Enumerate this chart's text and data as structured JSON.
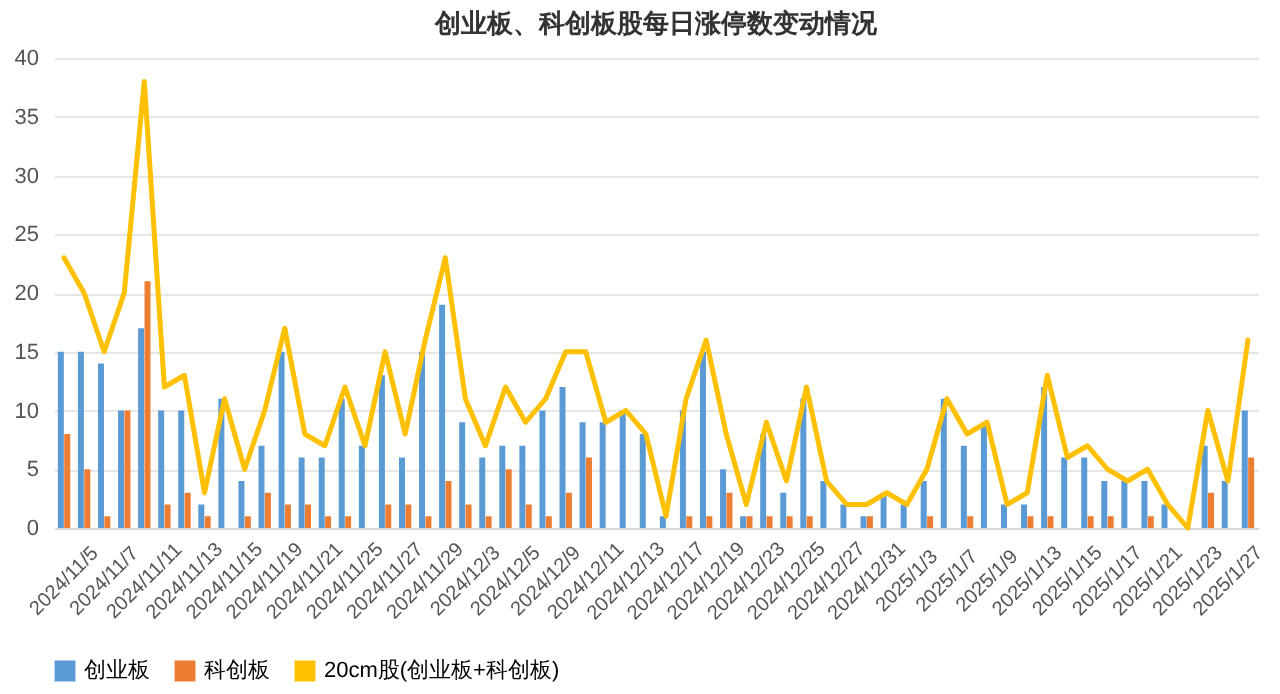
{
  "chart_data": {
    "type": "bar",
    "title": "创业板、科创板股每日涨停数变动情况",
    "categories": [
      "2024/11/5",
      null,
      "2024/11/7",
      null,
      "2024/11/11",
      null,
      "2024/11/13",
      null,
      "2024/11/15",
      null,
      "2024/11/19",
      null,
      "2024/11/21",
      null,
      "2024/11/25",
      null,
      "2024/11/27",
      null,
      "2024/11/29",
      null,
      "2024/12/3",
      null,
      "2024/12/5",
      null,
      "2024/12/9",
      null,
      "2024/12/11",
      null,
      "2024/12/13",
      null,
      "2024/12/17",
      null,
      "2024/12/19",
      null,
      "2024/12/23",
      null,
      "2024/12/25",
      null,
      "2024/12/27",
      null,
      "2024/12/31",
      null,
      "2025/1/3",
      null,
      "2025/1/7",
      null,
      "2025/1/9",
      null,
      "2025/1/13",
      null,
      "2025/1/15",
      null,
      "2025/1/17",
      null,
      "2025/1/21",
      null,
      "2025/1/23",
      null,
      "2025/1/27",
      null
    ],
    "series": [
      {
        "name": "创业板",
        "color": "#5b9bd5",
        "values": [
          15,
          15,
          14,
          10,
          17,
          10,
          10,
          2,
          11,
          4,
          7,
          15,
          6,
          6,
          11,
          7,
          13,
          6,
          15,
          19,
          9,
          6,
          7,
          7,
          10,
          12,
          9,
          9,
          10,
          8,
          1,
          10,
          15,
          5,
          1,
          8,
          3,
          11,
          4,
          2,
          1,
          3,
          2,
          4,
          11,
          7,
          9,
          2,
          2,
          12,
          6,
          6,
          4,
          4,
          4,
          2,
          0,
          7,
          4,
          10
        ]
      },
      {
        "name": "科创板",
        "color": "#ed7d31",
        "values": [
          8,
          5,
          1,
          10,
          21,
          2,
          3,
          1,
          0,
          1,
          3,
          2,
          2,
          1,
          1,
          0,
          2,
          2,
          1,
          4,
          2,
          1,
          5,
          2,
          1,
          3,
          6,
          0,
          0,
          0,
          0,
          1,
          1,
          3,
          1,
          1,
          1,
          1,
          0,
          0,
          1,
          0,
          0,
          1,
          0,
          1,
          0,
          0,
          1,
          1,
          0,
          1,
          1,
          0,
          1,
          0,
          0,
          3,
          0,
          6
        ]
      },
      {
        "name": "20cm股(创业板+科创板)",
        "color": "#ffc000",
        "type": "line",
        "values": [
          23,
          20,
          15,
          20,
          38,
          12,
          13,
          3,
          11,
          5,
          10,
          17,
          8,
          7,
          12,
          7,
          15,
          8,
          16,
          23,
          11,
          7,
          12,
          9,
          11,
          15,
          15,
          9,
          10,
          8,
          1,
          11,
          16,
          8,
          2,
          9,
          4,
          12,
          4,
          2,
          2,
          3,
          2,
          5,
          11,
          8,
          9,
          2,
          3,
          13,
          6,
          7,
          5,
          4,
          5,
          2,
          0,
          10,
          4,
          16
        ]
      }
    ],
    "ylim": [
      0,
      40
    ],
    "yticks": [
      0,
      5,
      10,
      15,
      20,
      25,
      30,
      35,
      40
    ],
    "grid": "y",
    "legend": "bottom"
  }
}
